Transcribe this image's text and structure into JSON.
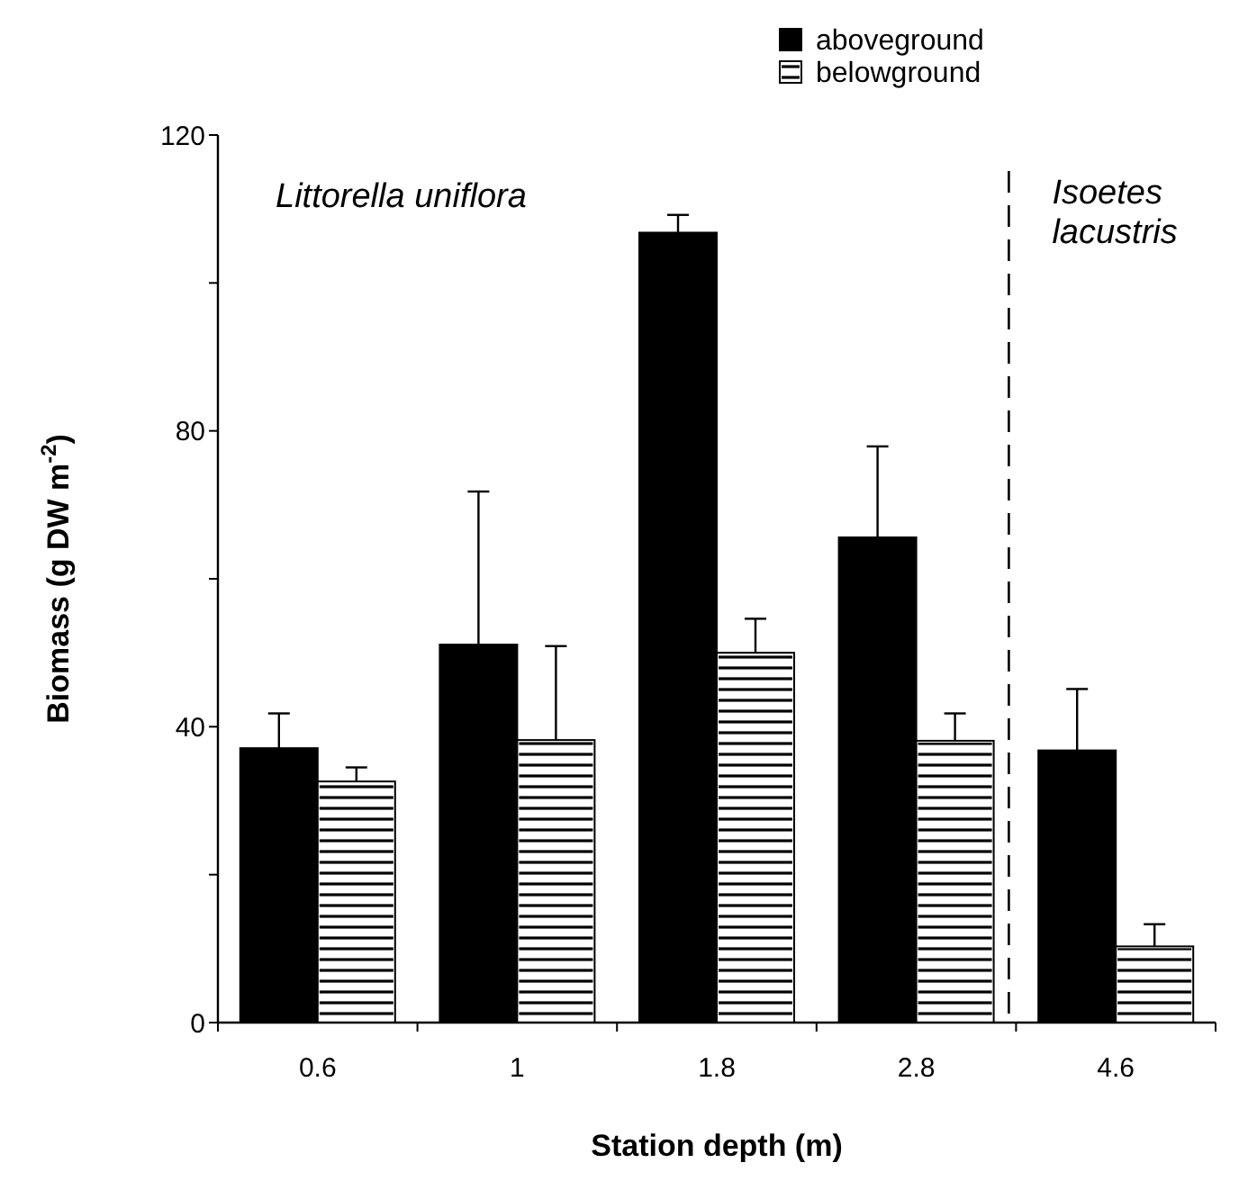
{
  "chart_data": {
    "type": "bar",
    "xlabel": "Station depth (m)",
    "ylabel": "Biomass (g DW m$^{-2}$)",
    "categories": [
      "0.6",
      "1",
      "1.8",
      "2.8",
      "4.6"
    ],
    "series": [
      {
        "name": "aboveground",
        "color": "#000000",
        "values": [
          37.1,
          51.1,
          106.8,
          65.6,
          36.8
        ],
        "errors": [
          [
            37.1,
            41.8
          ],
          [
            51.1,
            71.8
          ],
          [
            106.8,
            109.2
          ],
          [
            65.6,
            77.9
          ],
          [
            36.8,
            45.1
          ]
        ]
      },
      {
        "name": "belowground",
        "color": "#ffffff",
        "values": [
          32.6,
          38.2,
          50.0,
          38.1,
          10.3
        ],
        "errors": [
          [
            32.6,
            34.5
          ],
          [
            38.2,
            50.9
          ],
          [
            50.0,
            54.6
          ],
          [
            38.1,
            41.8
          ],
          [
            10.3,
            13.3
          ]
        ]
      }
    ],
    "ylim": [
      0,
      120
    ],
    "yticks": [
      0,
      {
        "value": 20,
        "label": null
      },
      40,
      {
        "value": 60,
        "label": null
      },
      80,
      {
        "value": 100,
        "label": null
      },
      120
    ],
    "annotations": [
      "Littorella uniflora",
      "Isoetes lacustris"
    ],
    "legend": "top",
    "grid": false
  }
}
